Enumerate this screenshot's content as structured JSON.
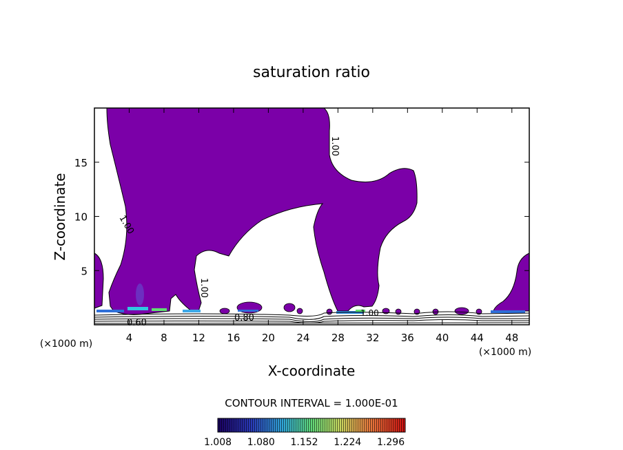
{
  "chart_data": {
    "type": "contour",
    "title": "saturation ratio",
    "xlabel": "X-coordinate",
    "ylabel": "Z-coordinate",
    "x_unit": "(×1000 m)",
    "y_unit": "(×1000 m)",
    "xlim": [
      0,
      50
    ],
    "ylim": [
      0,
      20
    ],
    "x_ticks": [
      4,
      8,
      12,
      16,
      20,
      24,
      28,
      32,
      36,
      40,
      44,
      48
    ],
    "y_ticks": [
      5,
      10,
      15
    ],
    "contour_interval_text": "CONTOUR INTERVAL = 1.000E-01",
    "contour_labels": [
      "1.00",
      "1.00",
      "1.00",
      "1.00",
      "0.80",
      "0.60"
    ],
    "colorbar": {
      "min": 1.008,
      "max": 1.32,
      "tick_labels": [
        "1.008",
        "1.080",
        "1.152",
        "1.224",
        "1.296"
      ]
    },
    "fill_color": "#7b00a8"
  }
}
